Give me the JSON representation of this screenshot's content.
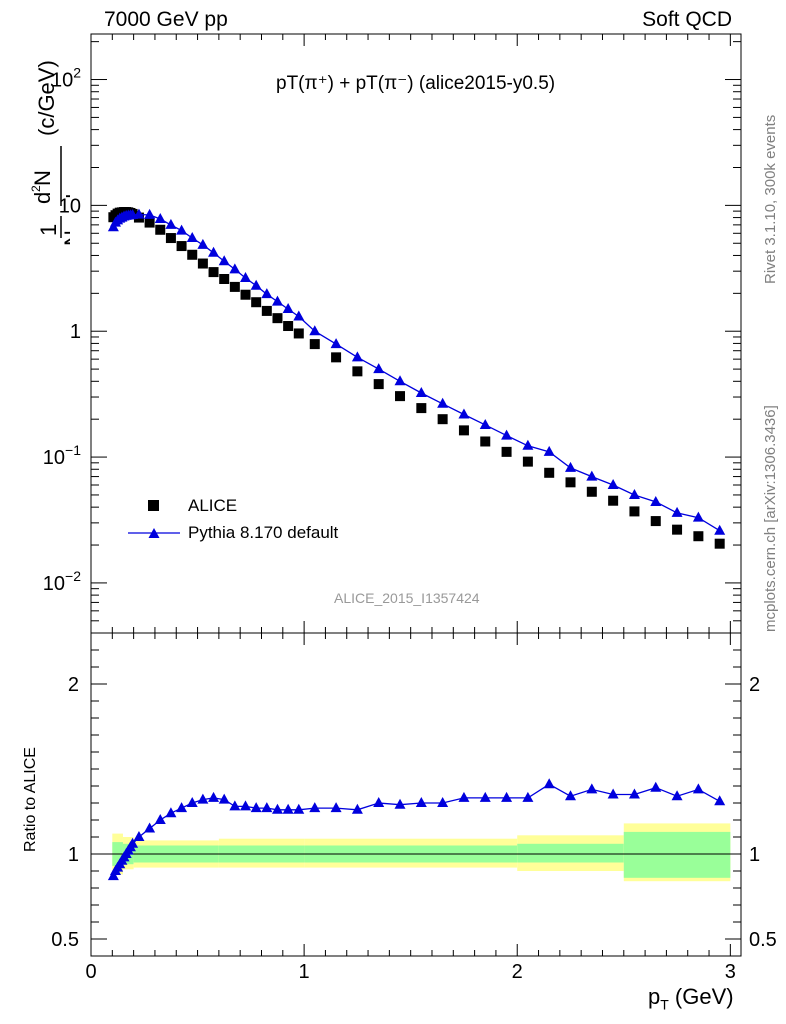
{
  "header": {
    "left": "7000 GeV pp",
    "right": "Soft QCD"
  },
  "side": {
    "top": "Rivet 3.1.10,  300k events",
    "bottom": "mcplots.cern.ch [arXiv:1306.3436]"
  },
  "plot_title": "pT(π⁺) + pT(π⁻) (alice2015-y0.5)",
  "analysis_id": "ALICE_2015_I1357424",
  "legend": [
    {
      "label": "ALICE",
      "marker": "square",
      "color": "#000000"
    },
    {
      "label": "Pythia 8.170 default",
      "marker": "triangle",
      "color": "#0000dd"
    }
  ],
  "colors": {
    "data": "#000000",
    "mc": "#0000dd",
    "band_inner": "#99ff99",
    "band_outer": "#ffff99"
  },
  "chart_data": [
    {
      "type": "scatter",
      "title": "pT(π⁺) + pT(π⁻) (alice2015-y0.5)",
      "xlabel": "p_T (GeV)",
      "ylabel": "1/N_inel d²N/dp_T dy (c/GeV)",
      "yscale": "log",
      "xlim": [
        0,
        3.05
      ],
      "ylim": [
        0.004,
        230
      ],
      "x_ticks": [
        "0",
        "1",
        "2",
        "3"
      ],
      "y_ticks": [
        "10^-2",
        "10^-1",
        "1",
        "10",
        "10^2"
      ],
      "x": [
        0.105,
        0.115,
        0.125,
        0.135,
        0.145,
        0.155,
        0.165,
        0.175,
        0.185,
        0.195,
        0.225,
        0.275,
        0.325,
        0.375,
        0.425,
        0.475,
        0.525,
        0.575,
        0.625,
        0.675,
        0.725,
        0.775,
        0.825,
        0.875,
        0.925,
        0.975,
        1.05,
        1.15,
        1.25,
        1.35,
        1.45,
        1.55,
        1.65,
        1.75,
        1.85,
        1.95,
        2.05,
        2.15,
        2.25,
        2.35,
        2.45,
        2.55,
        2.65,
        2.75,
        2.85,
        2.95
      ],
      "series": [
        {
          "name": "ALICE",
          "values": [
            8.05,
            8.35,
            8.6,
            8.75,
            8.8,
            8.85,
            8.85,
            8.8,
            8.7,
            8.55,
            8.0,
            7.3,
            6.4,
            5.5,
            4.75,
            4.05,
            3.45,
            2.95,
            2.6,
            2.25,
            1.95,
            1.7,
            1.45,
            1.27,
            1.1,
            0.96,
            0.79,
            0.62,
            0.48,
            0.38,
            0.305,
            0.245,
            0.2,
            0.163,
            0.133,
            0.11,
            0.092,
            0.075,
            0.063,
            0.053,
            0.045,
            0.037,
            0.031,
            0.0265,
            0.0235,
            0.0205
          ]
        },
        {
          "name": "Pythia 8.170 default",
          "values": [
            6.7,
            7.3,
            7.6,
            7.85,
            8.0,
            8.15,
            8.25,
            8.3,
            8.35,
            8.38,
            8.45,
            8.4,
            7.8,
            7.0,
            6.3,
            5.5,
            4.85,
            4.2,
            3.6,
            3.1,
            2.65,
            2.3,
            1.97,
            1.72,
            1.5,
            1.31,
            1.0,
            0.79,
            0.62,
            0.5,
            0.4,
            0.323,
            0.265,
            0.218,
            0.18,
            0.148,
            0.123,
            0.11,
            0.082,
            0.07,
            0.06,
            0.05,
            0.044,
            0.036,
            0.033,
            0.026
          ]
        }
      ]
    },
    {
      "type": "line",
      "ylabel": "Ratio to ALICE",
      "xlabel": "p_T (GeV)",
      "xlim": [
        0,
        3.05
      ],
      "ylim": [
        0.4,
        2.3
      ],
      "x_ticks": [
        "0",
        "1",
        "2",
        "3"
      ],
      "y_ticks": [
        "0.5",
        "1",
        "2"
      ],
      "x": [
        0.105,
        0.115,
        0.125,
        0.135,
        0.145,
        0.155,
        0.165,
        0.175,
        0.185,
        0.195,
        0.225,
        0.275,
        0.325,
        0.375,
        0.425,
        0.475,
        0.525,
        0.575,
        0.625,
        0.675,
        0.725,
        0.775,
        0.825,
        0.875,
        0.925,
        0.975,
        1.05,
        1.15,
        1.25,
        1.35,
        1.45,
        1.55,
        1.65,
        1.75,
        1.85,
        1.95,
        2.05,
        2.15,
        2.25,
        2.35,
        2.45,
        2.55,
        2.65,
        2.75,
        2.85,
        2.95
      ],
      "series": [
        {
          "name": "Pythia 8.170 default",
          "values": [
            0.87,
            0.9,
            0.92,
            0.94,
            0.96,
            0.98,
            1.0,
            1.02,
            1.04,
            1.06,
            1.1,
            1.15,
            1.2,
            1.24,
            1.27,
            1.3,
            1.32,
            1.33,
            1.32,
            1.28,
            1.28,
            1.27,
            1.27,
            1.26,
            1.26,
            1.26,
            1.27,
            1.27,
            1.26,
            1.3,
            1.29,
            1.3,
            1.3,
            1.33,
            1.33,
            1.33,
            1.33,
            1.41,
            1.34,
            1.38,
            1.35,
            1.35,
            1.39,
            1.34,
            1.38,
            1.31
          ]
        }
      ],
      "bands": {
        "x_edges": [
          0.1,
          0.15,
          0.2,
          0.6,
          1.0,
          2.0,
          2.5,
          3.0
        ],
        "inner_lo": [
          0.93,
          0.94,
          0.95,
          0.95,
          0.95,
          0.95,
          0.86,
          0.86
        ],
        "inner_hi": [
          1.07,
          1.06,
          1.05,
          1.05,
          1.05,
          1.06,
          1.13,
          1.13
        ],
        "outer_lo": [
          0.88,
          0.91,
          0.92,
          0.92,
          0.92,
          0.9,
          0.84,
          0.84
        ],
        "outer_hi": [
          1.12,
          1.1,
          1.08,
          1.09,
          1.09,
          1.11,
          1.18,
          1.18
        ]
      }
    }
  ]
}
